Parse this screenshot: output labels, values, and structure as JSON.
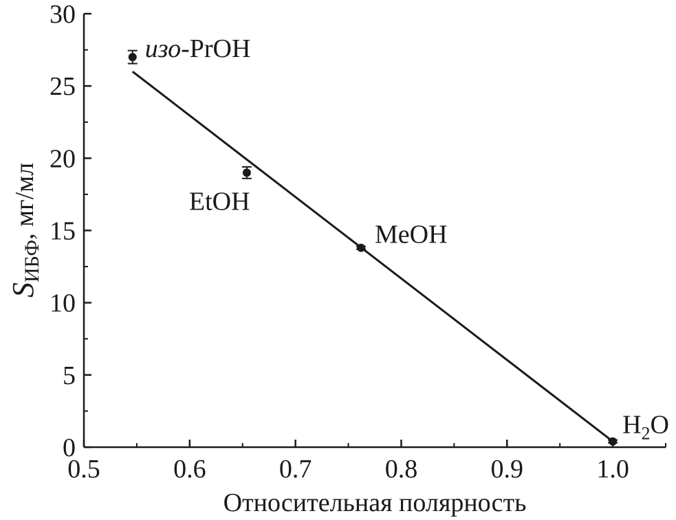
{
  "chart_data": {
    "type": "scatter",
    "xlabel": "Относительная полярность",
    "ylabel": {
      "symbol": "S",
      "subscript": "ИБФ",
      "unit": ", мг/мл"
    },
    "xlim": [
      0.5,
      1.05
    ],
    "ylim": [
      0,
      30
    ],
    "x_ticks": [
      "0.5",
      "0.6",
      "0.7",
      "0.8",
      "0.9",
      "1.0"
    ],
    "y_ticks": [
      "0",
      "5",
      "10",
      "15",
      "20",
      "25",
      "30"
    ],
    "grid": false,
    "series": [
      {
        "points": [
          {
            "x": 0.546,
            "y": 27.0,
            "err": 0.45
          },
          {
            "x": 0.654,
            "y": 19.0,
            "err": 0.4
          },
          {
            "x": 0.762,
            "y": 13.8,
            "err": 0.1
          },
          {
            "x": 1.0,
            "y": 0.4,
            "err": 0.1
          }
        ]
      }
    ],
    "fit_line": {
      "x": [
        0.546,
        1.0
      ],
      "y": [
        26.0,
        0.4
      ]
    },
    "point_labels": [
      {
        "italic": "изо",
        "text": "-PrOH"
      },
      {
        "italic": "",
        "text": "EtOH"
      },
      {
        "italic": "",
        "text": "MeOH"
      },
      {
        "italic": "",
        "text": "H",
        "sub": "2",
        "tail": "O"
      }
    ],
    "colors": {
      "ink": "#1a1a1a",
      "background": "#ffffff"
    }
  }
}
